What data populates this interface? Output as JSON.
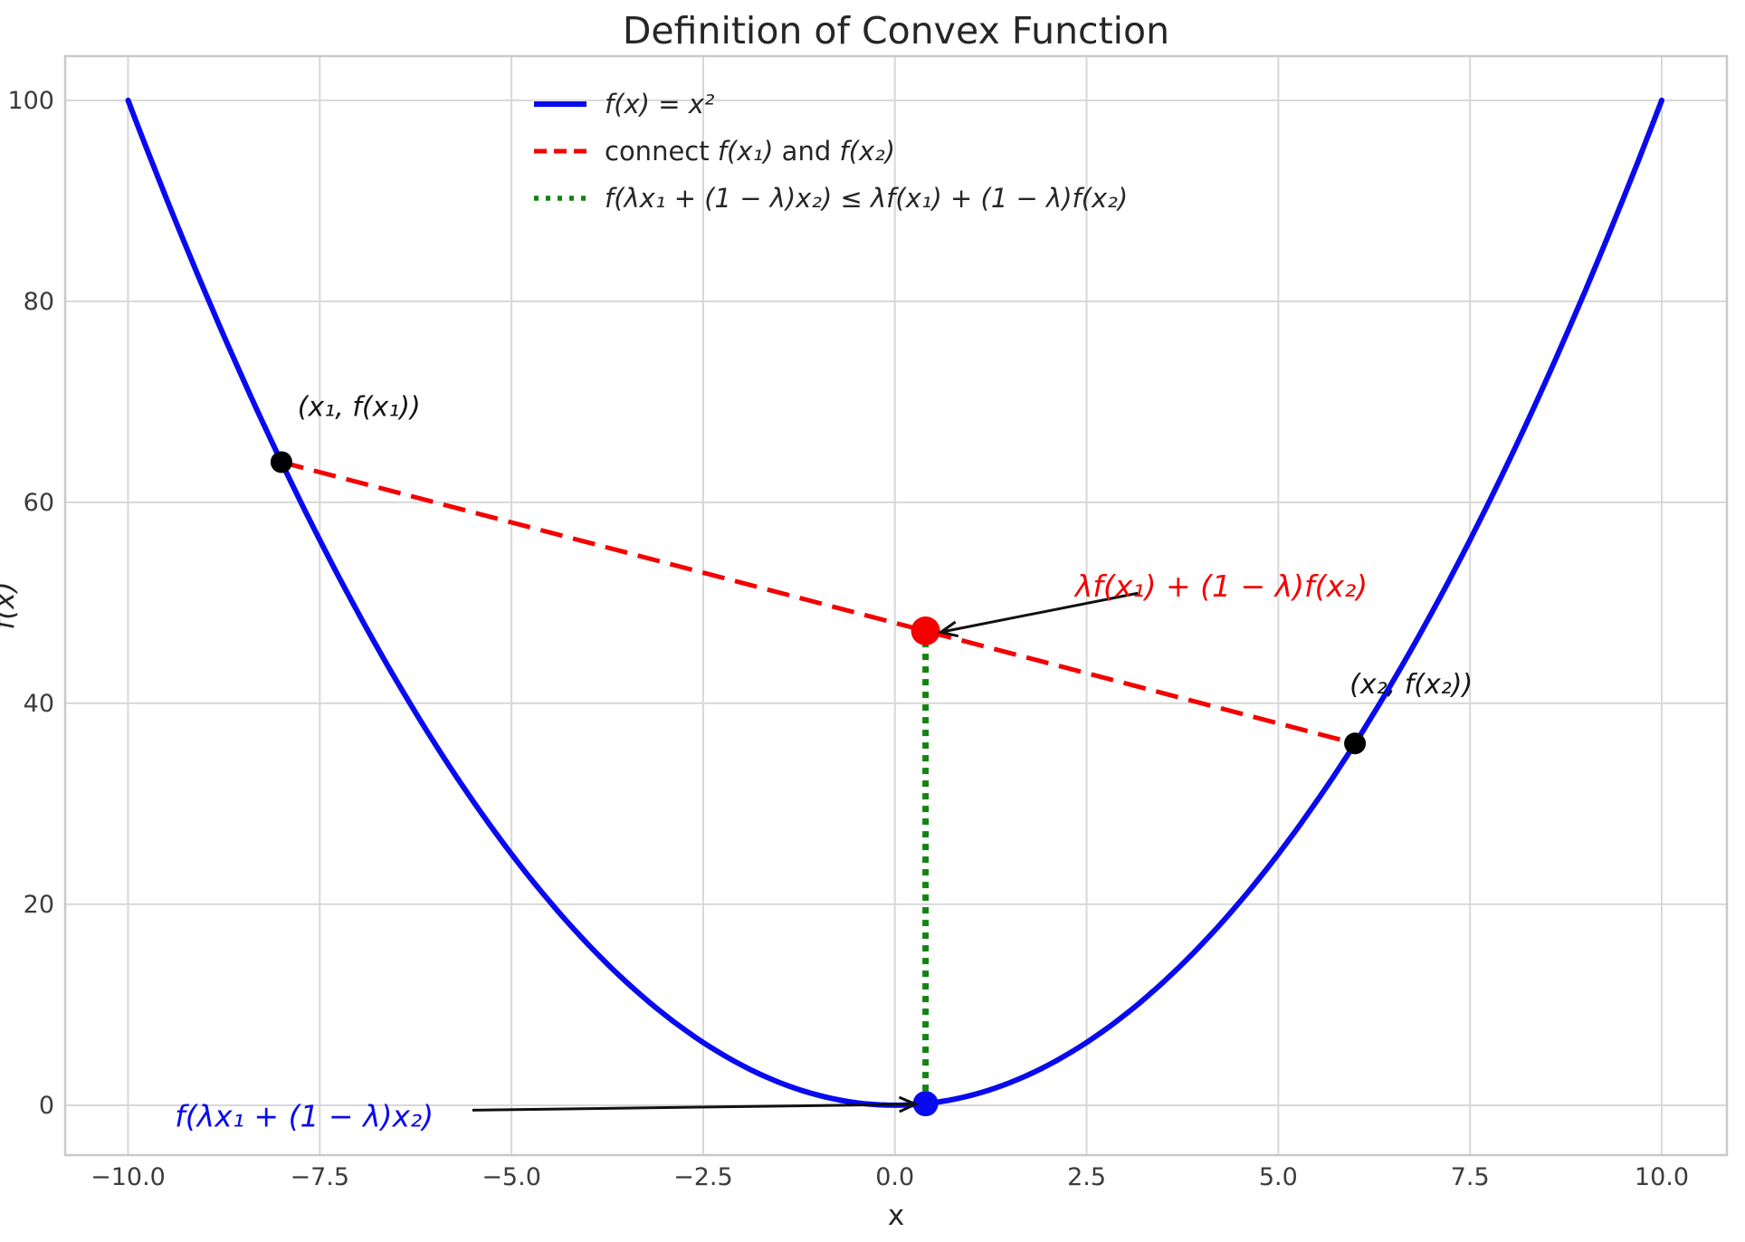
{
  "title": "Definition of Convex Function",
  "chart_data": {
    "type": "line",
    "title": "Definition of Convex Function",
    "xlabel": "x",
    "ylabel": "f(x)",
    "xlim": [
      -10.82,
      10.85
    ],
    "ylim": [
      -4.96,
      104.4
    ],
    "grid": true,
    "x_ticks": [
      -10.0,
      -7.5,
      -5.0,
      -2.5,
      0.0,
      2.5,
      5.0,
      7.5,
      10.0
    ],
    "x_tick_labels": [
      "−10.0",
      "−7.5",
      "−5.0",
      "−2.5",
      "0.0",
      "2.5",
      "5.0",
      "7.5",
      "10.0"
    ],
    "y_ticks": [
      0,
      20,
      40,
      60,
      80,
      100
    ],
    "y_tick_labels": [
      "0",
      "20",
      "40",
      "60",
      "80",
      "100"
    ],
    "legend": {
      "position": "upper center-left",
      "frame": false
    },
    "series": [
      {
        "slug": "fx-curve",
        "type": "function",
        "fn": "x^2",
        "x_range": [
          -10,
          10
        ],
        "color": "#0a0af0",
        "style": "solid",
        "label_parts": [
          {
            "t": "f(x) = x²",
            "i": true
          }
        ]
      },
      {
        "slug": "chord-line",
        "type": "segment",
        "points": [
          [
            -8,
            64
          ],
          [
            6,
            36
          ]
        ],
        "color": "#f40000",
        "style": "dashed",
        "label_parts": [
          {
            "t": "connect ",
            "i": false
          },
          {
            "t": "f(x₁)",
            "i": true
          },
          {
            "t": " and ",
            "i": false
          },
          {
            "t": "f(x₂)",
            "i": true
          }
        ]
      },
      {
        "slug": "convexity-gap-line",
        "type": "segment",
        "points": [
          [
            0.4,
            0.16
          ],
          [
            0.4,
            47.2
          ]
        ],
        "color": "#118411",
        "style": "dotted",
        "label_parts": [
          {
            "t": "f(λx₁ + (1 − λ)x₂) ≤ λf(x₁) + (1 − λ)f(x₂)",
            "i": true
          }
        ]
      }
    ],
    "points": [
      {
        "slug": "point-x1",
        "x": -8,
        "y": 64,
        "color": "#000000",
        "r": 12
      },
      {
        "slug": "point-x2",
        "x": 6,
        "y": 36,
        "color": "#000000",
        "r": 12
      },
      {
        "slug": "point-chord-value",
        "x": 0.4,
        "y": 47.2,
        "color": "#f40000",
        "r": 16
      },
      {
        "slug": "point-function-value",
        "x": 0.4,
        "y": 0.16,
        "color": "#0a0af0",
        "r": 14
      }
    ],
    "annotations": [
      {
        "slug": "label-point-x1",
        "text": "(x₁, f(x₁))",
        "color": "#141414",
        "x": -7.79,
        "y": 68.6,
        "size": 30,
        "italic": true,
        "anchor": "start"
      },
      {
        "slug": "label-point-x2",
        "text": "(x₂, f(x₂))",
        "color": "#141414",
        "x": 5.93,
        "y": 41.0,
        "size": 30,
        "italic": true,
        "anchor": "start"
      },
      {
        "slug": "label-chord-value",
        "text": "λf(x₁) + (1 − λ)f(x₂)",
        "color": "#f40000",
        "x": 2.35,
        "y": 50.6,
        "size": 33,
        "italic": true,
        "anchor": "start",
        "arrow": {
          "from": [
            3.17,
            50.96
          ],
          "to": [
            0.6,
            47.08
          ]
        }
      },
      {
        "slug": "label-function-value",
        "text": "f(λx₁ + (1 − λ)x₂)",
        "color": "#0a0af0",
        "x": -9.39,
        "y": -2.11,
        "size": 33,
        "italic": true,
        "anchor": "start",
        "arrow": {
          "from": [
            -5.51,
            -0.49
          ],
          "to": [
            0.27,
            0.1
          ]
        }
      }
    ],
    "colors": {
      "grid": "#d8d8d8",
      "spine": "#c9c9c9",
      "title_text": "#262626",
      "tick_text": "#3c3c3c",
      "arrow": "#111111",
      "background": "#ffffff"
    }
  }
}
